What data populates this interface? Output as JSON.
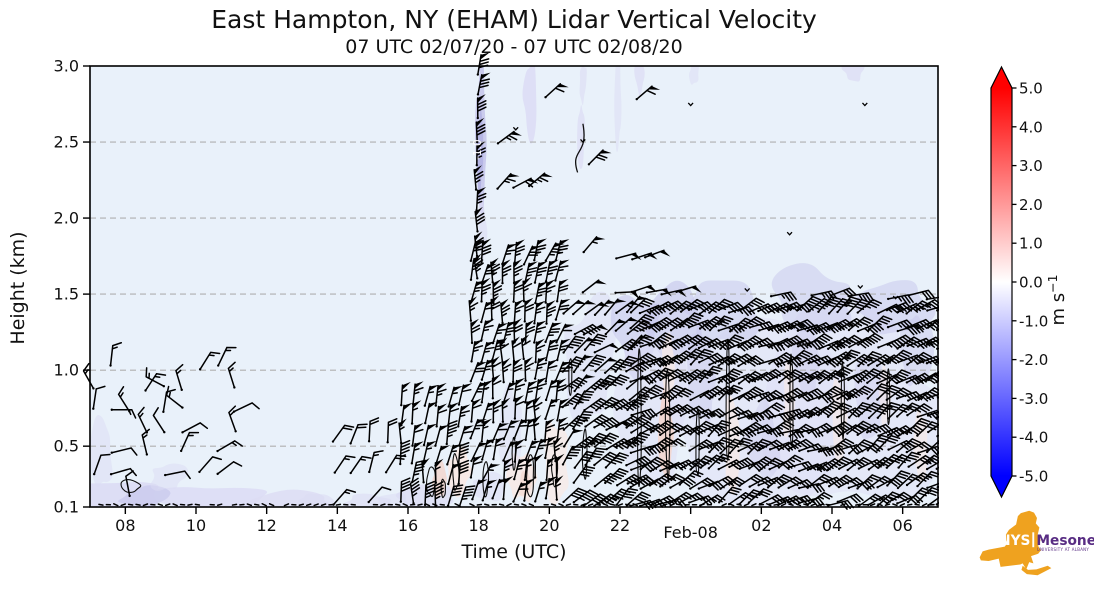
{
  "title": "East Hampton, NY (EHAM) Lidar Vertical Velocity",
  "subtitle": "07 UTC 02/07/20 - 07 UTC 02/08/20",
  "axes": {
    "x_label": "Time (UTC)",
    "y_label": "Height (km)",
    "x_range_hours": [
      7,
      31
    ],
    "y_range_km": [
      0.1,
      3.0
    ],
    "x_ticks": [
      {
        "t": 8,
        "label": "08"
      },
      {
        "t": 10,
        "label": "10"
      },
      {
        "t": 12,
        "label": "12"
      },
      {
        "t": 14,
        "label": "14"
      },
      {
        "t": 16,
        "label": "16"
      },
      {
        "t": 18,
        "label": "18"
      },
      {
        "t": 20,
        "label": "20"
      },
      {
        "t": 22,
        "label": "22"
      },
      {
        "t": 24,
        "label": "Feb-08",
        "date": true
      },
      {
        "t": 26,
        "label": "02"
      },
      {
        "t": 28,
        "label": "04"
      },
      {
        "t": 30,
        "label": "06"
      }
    ],
    "y_ticks": [
      {
        "v": 3.0,
        "label": "3.0"
      },
      {
        "v": 2.5,
        "label": "2.5"
      },
      {
        "v": 2.0,
        "label": "2.0"
      },
      {
        "v": 1.5,
        "label": "1.5"
      },
      {
        "v": 1.0,
        "label": "1.0"
      },
      {
        "v": 0.5,
        "label": "0.5"
      },
      {
        "v": 0.1,
        "label": "0.1"
      }
    ]
  },
  "colorbar": {
    "tick_values": [
      5,
      4,
      3,
      2,
      1,
      0,
      -1,
      -2,
      -3,
      -4,
      -5
    ],
    "tick_labels": [
      "5.0",
      "4.0",
      "3.0",
      "2.0",
      "1.0",
      "0.0",
      "-1.0",
      "-2.0",
      "-3.0",
      "-4.0",
      "-5.0"
    ],
    "unit": "m s",
    "unit_exp": "−1",
    "vmin": -5,
    "vmax": 5,
    "cmap": "bwr",
    "extend": "both",
    "color_top": "#ff0000",
    "color_mid": "#ffffff",
    "color_bottom": "#0000ff"
  },
  "palette": {
    "bg": "#e9f1fa",
    "lav1": "#dcdcf4",
    "lav2": "#c8c8ec",
    "lav3": "#b2b2e2",
    "pink1": "#f9e9e4",
    "pink2": "#f3d5cc",
    "grid": "#b0b0b0",
    "barb": "#000000"
  },
  "logo": {
    "nys": "NYS",
    "mesonet": "Mesonet",
    "subtext": "UNIVERSITY AT ALBANY",
    "gold": "#EFA21F",
    "purple": "#582C83",
    "white": "#ffffff"
  },
  "chart_data": {
    "type": "time_height_wind_barbs_over_filled_contour",
    "shaded_field": "vertical velocity (m s-1), bwr colormap, mostly 0 to -1 patches",
    "barb_units": "knots",
    "gridlines_km": [
      0.5,
      1.0,
      1.5,
      2.0,
      2.5
    ],
    "gridline_style": "dashed",
    "shading": [
      [
        "lav1",
        7.9,
        0.18,
        2.2,
        0.22,
        0.9
      ],
      [
        "lav1",
        10.4,
        0.16,
        3.0,
        0.16,
        0.85
      ],
      [
        "lav1",
        12.7,
        0.14,
        2.2,
        0.12,
        0.8
      ],
      [
        "lav2",
        8.6,
        0.17,
        1.6,
        0.12,
        0.7
      ],
      [
        "lav1",
        7.35,
        0.45,
        0.6,
        0.5,
        0.5
      ],
      [
        "lav1",
        9.2,
        0.3,
        1.0,
        0.2,
        0.5
      ],
      [
        "lav1",
        13.4,
        0.14,
        1.0,
        0.1,
        0.6
      ],
      [
        "lav1",
        14.9,
        0.13,
        1.6,
        0.1,
        0.6
      ],
      [
        "lav1",
        15.6,
        0.14,
        0.8,
        0.1,
        0.5
      ],
      [
        "lav1",
        16.6,
        0.18,
        1.6,
        0.18,
        0.7
      ],
      [
        "pink1",
        17.4,
        0.33,
        0.7,
        0.3,
        0.9
      ],
      [
        "pink2",
        16.9,
        0.28,
        0.35,
        0.22,
        0.8
      ],
      [
        "lav1",
        18.3,
        0.22,
        1.0,
        0.2,
        0.5
      ],
      [
        "pink1",
        19.2,
        0.3,
        0.8,
        0.35,
        0.8
      ],
      [
        "pink2",
        19.3,
        0.25,
        0.35,
        0.2,
        0.6
      ],
      [
        "lav1",
        18.9,
        0.6,
        0.6,
        0.5,
        0.45
      ],
      [
        "pink1",
        20.2,
        0.4,
        0.7,
        0.5,
        0.7
      ],
      [
        "lav2",
        18.05,
        2.5,
        0.3,
        1.0,
        0.95
      ],
      [
        "lav3",
        18.05,
        2.45,
        0.16,
        0.55,
        0.9
      ],
      [
        "lav1",
        18.1,
        1.9,
        0.25,
        0.4,
        0.6
      ],
      [
        "lav1",
        19.45,
        2.8,
        0.4,
        0.55,
        0.85
      ],
      [
        "lav1",
        20.9,
        2.55,
        0.2,
        0.4,
        0.7
      ],
      [
        "lav1",
        20.95,
        2.9,
        0.22,
        0.3,
        0.6
      ],
      [
        "lav1",
        21.95,
        2.75,
        0.18,
        0.6,
        0.5
      ],
      [
        "lav1",
        22.55,
        2.93,
        0.3,
        0.22,
        0.7
      ],
      [
        "lav1",
        24.1,
        2.95,
        0.25,
        0.15,
        0.5
      ],
      [
        "lav1",
        28.6,
        2.98,
        0.6,
        0.15,
        0.7
      ],
      [
        "lav1",
        21.2,
        1.05,
        1.6,
        0.8,
        0.5
      ],
      [
        "lav2",
        22.5,
        1.25,
        1.3,
        0.6,
        0.6
      ],
      [
        "lav2",
        23.6,
        1.3,
        1.6,
        0.55,
        0.65
      ],
      [
        "lav1",
        22.9,
        0.75,
        1.8,
        0.9,
        0.45
      ],
      [
        "lav1",
        25.4,
        0.75,
        5.0,
        1.35,
        0.4
      ],
      [
        "lav1",
        28.6,
        0.75,
        4.8,
        1.35,
        0.4
      ],
      [
        "lav2",
        24.9,
        1.4,
        2.4,
        0.4,
        0.55
      ],
      [
        "lav2",
        27.4,
        1.45,
        2.4,
        0.4,
        0.5
      ],
      [
        "lav2",
        29.8,
        1.4,
        2.2,
        0.4,
        0.55
      ],
      [
        "lav2",
        24.3,
        0.95,
        0.9,
        0.6,
        0.45
      ],
      [
        "lav2",
        26.1,
        0.55,
        0.9,
        0.5,
        0.4
      ],
      [
        "lav2",
        27.3,
        1.05,
        0.8,
        0.45,
        0.4
      ],
      [
        "lav2",
        29.1,
        0.85,
        0.9,
        0.55,
        0.4
      ],
      [
        "lav2",
        30.4,
        1.15,
        0.8,
        0.55,
        0.5
      ],
      [
        "pink2",
        23.3,
        0.6,
        0.4,
        0.75,
        0.85
      ],
      [
        "pink1",
        23.35,
        1.05,
        0.35,
        0.4,
        0.7
      ],
      [
        "pink1",
        25.2,
        0.5,
        0.45,
        0.6,
        0.7
      ],
      [
        "pink1",
        26.8,
        0.8,
        0.35,
        0.5,
        0.6
      ],
      [
        "pink1",
        28.2,
        0.7,
        0.4,
        0.5,
        0.6
      ],
      [
        "pink1",
        29.5,
        0.85,
        0.3,
        0.4,
        0.5
      ],
      [
        "pink1",
        30.5,
        0.5,
        0.35,
        0.5,
        0.6
      ]
    ],
    "contours": [
      [
        8.15,
        0.24,
        0.55,
        0.08
      ],
      [
        16.65,
        0.27,
        0.25,
        0.2
      ],
      [
        17.0,
        0.22,
        0.14,
        0.12
      ],
      [
        17.35,
        0.33,
        0.2,
        0.24
      ],
      [
        18.2,
        0.28,
        0.16,
        0.22
      ],
      [
        19.0,
        0.45,
        0.1,
        0.2
      ],
      [
        19.45,
        0.3,
        0.22,
        0.26
      ],
      [
        20.15,
        0.35,
        0.16,
        0.22
      ],
      [
        20.6,
        0.95,
        0.09,
        0.28
      ],
      [
        21.0,
        0.45,
        0.13,
        0.32
      ],
      [
        22.55,
        0.7,
        0.11,
        0.85
      ],
      [
        23.35,
        0.65,
        0.13,
        0.75
      ],
      [
        24.2,
        0.5,
        0.1,
        0.45
      ],
      [
        25.05,
        0.8,
        0.1,
        0.8
      ],
      [
        26.85,
        0.8,
        0.1,
        0.65
      ],
      [
        28.3,
        0.8,
        0.09,
        0.5
      ],
      [
        29.6,
        0.8,
        0.08,
        0.38
      ]
    ],
    "open_arcs": [
      [
        20.8,
        2.3,
        20.95,
        2.62
      ]
    ],
    "contour_labels": [
      {
        "t": 18.06,
        "z": 2.45,
        "text": "-1.0",
        "color": "#ffffff",
        "rotation": -90,
        "size": 10.5
      }
    ],
    "barb_clusters": [
      [
        7.1,
        11.4,
        0.5,
        0.18,
        1.05,
        0.14,
        0.5,
        5,
        18,
        75,
        75
      ],
      [
        13.9,
        15.5,
        0.5,
        0.12,
        0.55,
        0.2,
        0.85,
        8,
        22,
        65,
        25
      ],
      [
        15.8,
        17.7,
        0.33,
        0.12,
        0.85,
        0.13,
        0.92,
        30,
        70,
        85,
        10
      ],
      [
        17.95,
        18.3,
        0.45,
        1.6,
        3.0,
        0.15,
        1,
        60,
        95,
        88,
        6
      ],
      [
        17.8,
        20.35,
        0.3,
        0.15,
        1.72,
        0.13,
        0.95,
        45,
        80,
        78,
        14
      ],
      [
        18.55,
        19.45,
        0.45,
        2.2,
        2.7,
        0.3,
        0.85,
        55,
        75,
        42,
        10
      ],
      [
        19.9,
        20.7,
        0.5,
        2.78,
        3.0,
        0.28,
        0.8,
        55,
        65,
        40,
        8
      ],
      [
        21.15,
        21.5,
        0.6,
        2.35,
        2.55,
        0.4,
        1,
        70,
        75,
        45,
        5
      ],
      [
        22.45,
        22.85,
        0.6,
        2.78,
        2.95,
        0.4,
        1,
        60,
        65,
        40,
        5
      ],
      [
        21.9,
        23.6,
        0.42,
        1.5,
        1.95,
        0.23,
        0.9,
        50,
        55,
        8,
        8
      ],
      [
        20.5,
        21.3,
        0.45,
        1.5,
        1.78,
        0.28,
        0.7,
        45,
        60,
        55,
        15
      ],
      [
        20.4,
        22.3,
        0.3,
        0.12,
        1.45,
        0.125,
        0.95,
        35,
        55,
        45,
        15
      ],
      [
        22.3,
        31.0,
        0.28,
        0.12,
        1.42,
        0.115,
        0.97,
        20,
        45,
        30,
        14
      ],
      [
        26.3,
        31.0,
        0.55,
        1.48,
        1.64,
        0.2,
        0.55,
        28,
        42,
        12,
        10
      ]
    ],
    "calm_row": {
      "t0": 7.1,
      "t1": 30.95,
      "dt": 0.21,
      "z": 0.115,
      "p": 0.8,
      "len": 4
    },
    "specks": [
      [
        20.95,
        2.5
      ],
      [
        24.0,
        2.74
      ],
      [
        19.05,
        2.58
      ],
      [
        28.93,
        2.74
      ],
      [
        28.8,
        1.54
      ],
      [
        29.8,
        1.47
      ],
      [
        26.8,
        1.89
      ],
      [
        25.6,
        1.52
      ]
    ]
  }
}
